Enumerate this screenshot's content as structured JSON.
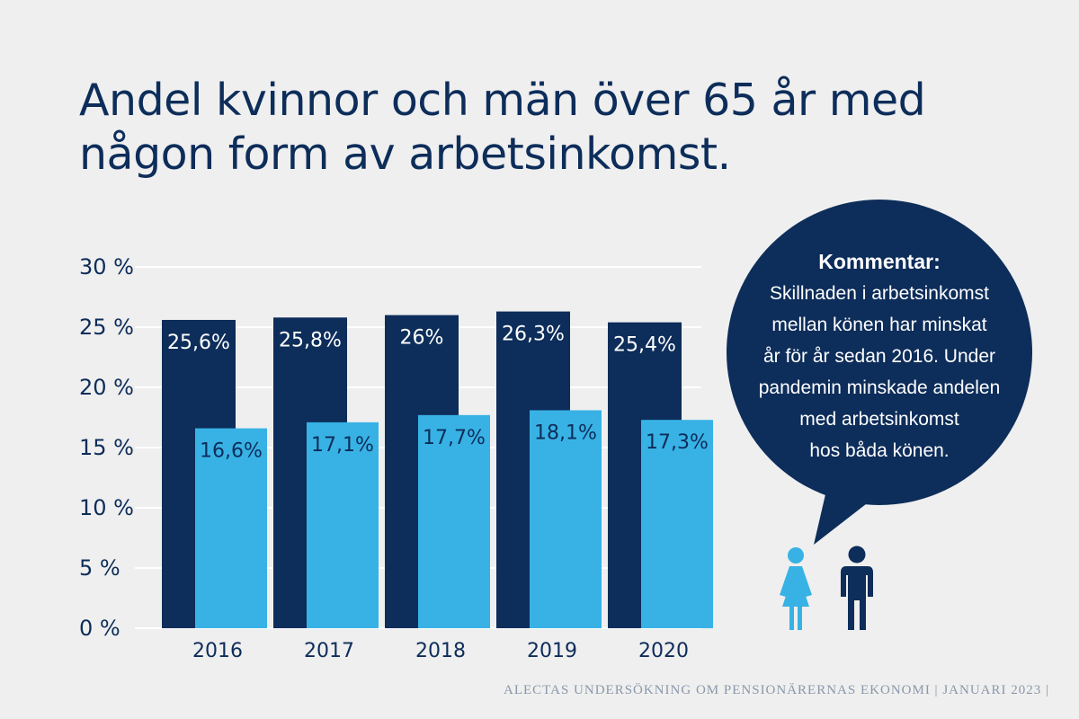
{
  "title_line1": "Andel kvinnor och män över 65 år med",
  "title_line2": "någon form av arbetsinkomst.",
  "colors": {
    "background": "#efefef",
    "navy": "#0d2d5a",
    "light_blue": "#38b2e5",
    "grid": "#ffffff"
  },
  "chart_data": {
    "type": "bar",
    "categories": [
      "2016",
      "2017",
      "2018",
      "2019",
      "2020"
    ],
    "series": [
      {
        "name": "Män",
        "color": "#0d2d5a",
        "values": [
          25.6,
          25.8,
          26,
          26.3,
          25.4
        ],
        "labels": [
          "25,6%",
          "25,8%",
          "26%",
          "26,3%",
          "25,4%"
        ]
      },
      {
        "name": "Kvinnor",
        "color": "#38b2e5",
        "values": [
          16.6,
          17.1,
          17.7,
          18.1,
          17.3
        ],
        "labels": [
          "16,6%",
          "17,1%",
          "17,7%",
          "18,1%",
          "17,3%"
        ]
      }
    ],
    "ylim": [
      0,
      30
    ],
    "yticks": [
      0,
      5,
      10,
      15,
      20,
      25,
      30
    ],
    "ytick_labels": [
      "0 %",
      "5 %",
      "10 %",
      "15 %",
      "20 %",
      "25 %",
      "30 %"
    ],
    "grid": true
  },
  "comment": {
    "heading": "Kommentar:",
    "lines": [
      "Skillnaden i arbetsinkomst",
      "mellan könen har minskat",
      "år för år sedan 2016. Under",
      "pandemin minskade andelen",
      "med arbetsinkomst",
      "hos båda könen."
    ]
  },
  "icons": {
    "female": "female-person-icon",
    "male": "male-person-icon"
  },
  "footer": "ALECTAS UNDERSÖKNING OM PENSIONÄRERNAS EKONOMI | JANUARI 2023 |"
}
